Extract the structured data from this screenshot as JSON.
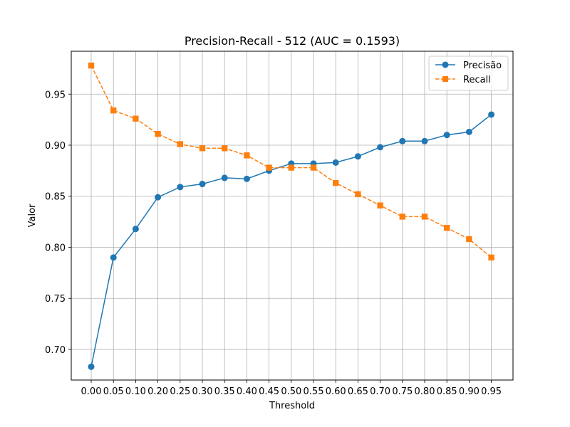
{
  "chart_data": {
    "type": "line",
    "title": "Precision-Recall - 512 (AUC = 0.1593)",
    "xlabel": "Threshold",
    "ylabel": "Valor",
    "categories": [
      "0.00",
      "0.05",
      "0.10",
      "0.20",
      "0.25",
      "0.30",
      "0.35",
      "0.40",
      "0.45",
      "0.50",
      "0.55",
      "0.60",
      "0.65",
      "0.70",
      "0.75",
      "0.80",
      "0.85",
      "0.90",
      "0.95"
    ],
    "ylim": [
      0.67,
      0.992
    ],
    "yticks": [
      0.7,
      0.75,
      0.8,
      0.85,
      0.9,
      0.95
    ],
    "ytick_labels": [
      "0.70",
      "0.75",
      "0.80",
      "0.85",
      "0.90",
      "0.95"
    ],
    "grid": true,
    "legend_position": "top-right",
    "series": [
      {
        "name": "Precisão",
        "color": "#1f77b4",
        "marker": "circle",
        "line_style": "solid",
        "values": [
          0.683,
          0.79,
          0.818,
          0.849,
          0.859,
          0.862,
          0.868,
          0.867,
          0.875,
          0.882,
          0.882,
          0.883,
          0.889,
          0.898,
          0.904,
          0.904,
          0.91,
          0.913,
          0.93
        ]
      },
      {
        "name": "Recall",
        "color": "#ff7f0e",
        "marker": "square",
        "line_style": "dashed",
        "values": [
          0.978,
          0.934,
          0.926,
          0.911,
          0.901,
          0.897,
          0.897,
          0.89,
          0.878,
          0.878,
          0.878,
          0.863,
          0.852,
          0.841,
          0.83,
          0.83,
          0.819,
          0.808,
          0.79
        ]
      }
    ]
  }
}
